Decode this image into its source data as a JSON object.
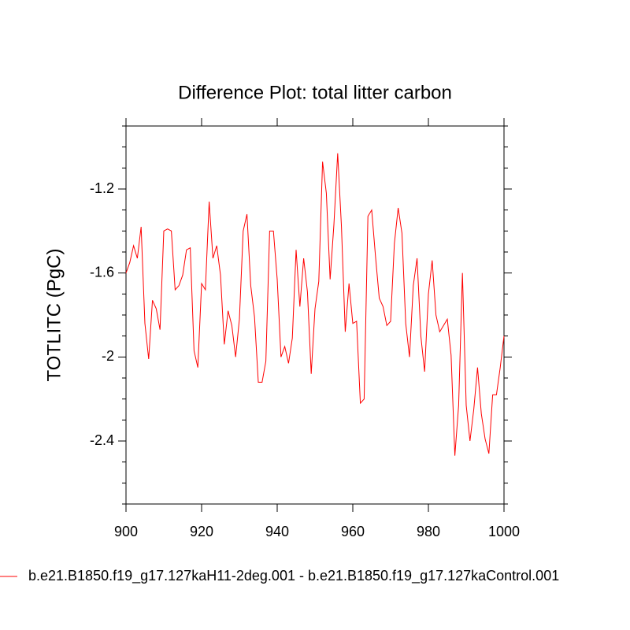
{
  "chart_data": {
    "type": "line",
    "title": "Difference Plot: total litter carbon",
    "y_label": "TOTLITC  (PgC)",
    "x": [
      900,
      901,
      902,
      903,
      904,
      905,
      906,
      907,
      908,
      909,
      910,
      911,
      912,
      913,
      914,
      915,
      916,
      917,
      918,
      919,
      920,
      921,
      922,
      923,
      924,
      925,
      926,
      927,
      928,
      929,
      930,
      931,
      932,
      933,
      934,
      935,
      936,
      937,
      938,
      939,
      940,
      941,
      942,
      943,
      944,
      945,
      946,
      947,
      948,
      949,
      950,
      951,
      952,
      953,
      954,
      955,
      956,
      957,
      958,
      959,
      960,
      961,
      962,
      963,
      964,
      965,
      966,
      967,
      968,
      969,
      970,
      971,
      972,
      973,
      974,
      975,
      976,
      977,
      978,
      979,
      980,
      981,
      982,
      983,
      984,
      985,
      986,
      987,
      988,
      989,
      990,
      991,
      992,
      993,
      994,
      995,
      996,
      997,
      998,
      999,
      1000
    ],
    "series": [
      {
        "name": "b.e21.B1850.f19_g17.127kaH11-2deg.001 - b.e21.B1850.f19_g17.127kaControl.001",
        "color": "#ff0000",
        "values": [
          -1.6,
          -1.55,
          -1.47,
          -1.53,
          -1.38,
          -1.84,
          -2.01,
          -1.73,
          -1.77,
          -1.87,
          -1.4,
          -1.39,
          -1.4,
          -1.68,
          -1.66,
          -1.61,
          -1.49,
          -1.48,
          -1.97,
          -2.05,
          -1.65,
          -1.68,
          -1.26,
          -1.53,
          -1.47,
          -1.61,
          -1.94,
          -1.78,
          -1.85,
          -2.0,
          -1.82,
          -1.4,
          -1.32,
          -1.66,
          -1.81,
          -2.12,
          -2.12,
          -2.02,
          -1.4,
          -1.4,
          -1.63,
          -2.0,
          -1.95,
          -2.03,
          -1.91,
          -1.49,
          -1.76,
          -1.53,
          -1.69,
          -2.08,
          -1.77,
          -1.64,
          -1.07,
          -1.22,
          -1.63,
          -1.37,
          -1.03,
          -1.38,
          -1.88,
          -1.65,
          -1.84,
          -1.83,
          -2.22,
          -2.2,
          -1.33,
          -1.3,
          -1.52,
          -1.72,
          -1.76,
          -1.85,
          -1.83,
          -1.46,
          -1.29,
          -1.41,
          -1.84,
          -2.0,
          -1.66,
          -1.53,
          -1.9,
          -2.07,
          -1.7,
          -1.54,
          -1.8,
          -1.88,
          -1.85,
          -1.82,
          -1.99,
          -2.47,
          -2.23,
          -1.6,
          -2.23,
          -2.4,
          -2.25,
          -2.05,
          -2.27,
          -2.39,
          -2.46,
          -2.18,
          -2.18,
          -2.05,
          -1.9
        ]
      }
    ],
    "xlim": [
      900,
      1000
    ],
    "xticks": [
      900,
      920,
      940,
      960,
      980,
      1000
    ],
    "ylim": [
      -2.7,
      -0.9
    ],
    "yticks": [
      -2.4,
      -2.0,
      -1.6,
      -1.2
    ],
    "yminorticks": [
      -2.7,
      -2.6,
      -2.5,
      -2.3,
      -2.2,
      -2.1,
      -1.9,
      -1.8,
      -1.7,
      -1.5,
      -1.4,
      -1.3,
      -1.1,
      -1.0,
      -0.9
    ],
    "legend": "bottom"
  }
}
